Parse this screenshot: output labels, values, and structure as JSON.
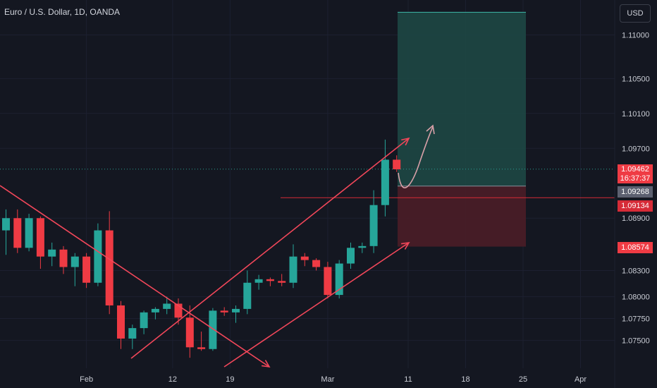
{
  "header": {
    "title": "Euro / U.S. Dollar, 1D, OANDA",
    "currency": "USD"
  },
  "colors": {
    "background": "#141721",
    "up": "#26a69a",
    "down": "#ef3b44",
    "drawing": "#f2475a",
    "target_zone": "#1d4a45",
    "stop_zone": "#4a1d27"
  },
  "price_badges": {
    "current_price": "1.09462",
    "countdown": "16:37:37",
    "entry": "1.09268",
    "stop_line": "1.09134",
    "stop_target": "1.08574"
  },
  "chart_data": {
    "type": "candlestick",
    "title": "Euro / U.S. Dollar, 1D, OANDA",
    "y_axis_ticks": [
      "1.11000",
      "1.10500",
      "1.10100",
      "1.09700",
      "1.08900",
      "1.08300",
      "1.08000",
      "1.07750",
      "1.07500"
    ],
    "x_axis_ticks": [
      "Feb",
      "12",
      "19",
      "Mar",
      "11",
      "18",
      "25",
      "Apr"
    ],
    "ylim": [
      1.0718,
      1.114
    ],
    "ohlc": [
      {
        "o": 1.0876,
        "h": 1.09,
        "l": 1.0848,
        "c": 1.089
      },
      {
        "o": 1.089,
        "h": 1.09,
        "l": 1.085,
        "c": 1.0856
      },
      {
        "o": 1.0856,
        "h": 1.0895,
        "l": 1.0852,
        "c": 1.089
      },
      {
        "o": 1.089,
        "h": 1.0892,
        "l": 1.0832,
        "c": 1.0846
      },
      {
        "o": 1.0846,
        "h": 1.0862,
        "l": 1.0835,
        "c": 1.0854
      },
      {
        "o": 1.0854,
        "h": 1.0858,
        "l": 1.0826,
        "c": 1.0834
      },
      {
        "o": 1.0834,
        "h": 1.085,
        "l": 1.0812,
        "c": 1.0846
      },
      {
        "o": 1.0846,
        "h": 1.085,
        "l": 1.081,
        "c": 1.0816
      },
      {
        "o": 1.0816,
        "h": 1.0884,
        "l": 1.0812,
        "c": 1.0876
      },
      {
        "o": 1.0876,
        "h": 1.0898,
        "l": 1.078,
        "c": 1.079
      },
      {
        "o": 1.079,
        "h": 1.0795,
        "l": 1.074,
        "c": 1.0752
      },
      {
        "o": 1.0752,
        "h": 1.0768,
        "l": 1.074,
        "c": 1.0764
      },
      {
        "o": 1.0764,
        "h": 1.0784,
        "l": 1.0757,
        "c": 1.0782
      },
      {
        "o": 1.0782,
        "h": 1.0788,
        "l": 1.0774,
        "c": 1.0786
      },
      {
        "o": 1.0786,
        "h": 1.08,
        "l": 1.078,
        "c": 1.0792
      },
      {
        "o": 1.0792,
        "h": 1.0798,
        "l": 1.0768,
        "c": 1.0776
      },
      {
        "o": 1.0776,
        "h": 1.079,
        "l": 1.073,
        "c": 1.0742
      },
      {
        "o": 1.0742,
        "h": 1.076,
        "l": 1.0738,
        "c": 1.074
      },
      {
        "o": 1.074,
        "h": 1.0787,
        "l": 1.0738,
        "c": 1.0784
      },
      {
        "o": 1.0784,
        "h": 1.0788,
        "l": 1.0778,
        "c": 1.0782
      },
      {
        "o": 1.0782,
        "h": 1.079,
        "l": 1.077,
        "c": 1.0786
      },
      {
        "o": 1.0786,
        "h": 1.083,
        "l": 1.078,
        "c": 1.0816
      },
      {
        "o": 1.0816,
        "h": 1.0825,
        "l": 1.0808,
        "c": 1.082
      },
      {
        "o": 1.082,
        "h": 1.0822,
        "l": 1.0812,
        "c": 1.0818
      },
      {
        "o": 1.0818,
        "h": 1.0826,
        "l": 1.0812,
        "c": 1.0816
      },
      {
        "o": 1.0816,
        "h": 1.086,
        "l": 1.081,
        "c": 1.0846
      },
      {
        "o": 1.0846,
        "h": 1.085,
        "l": 1.0835,
        "c": 1.0842
      },
      {
        "o": 1.0842,
        "h": 1.0844,
        "l": 1.083,
        "c": 1.0834
      },
      {
        "o": 1.0834,
        "h": 1.084,
        "l": 1.0798,
        "c": 1.0802
      },
      {
        "o": 1.0802,
        "h": 1.0842,
        "l": 1.0798,
        "c": 1.0838
      },
      {
        "o": 1.0838,
        "h": 1.0862,
        "l": 1.0832,
        "c": 1.0856
      },
      {
        "o": 1.0856,
        "h": 1.0862,
        "l": 1.085,
        "c": 1.0858
      },
      {
        "o": 1.0858,
        "h": 1.0922,
        "l": 1.085,
        "c": 1.0905
      },
      {
        "o": 1.0905,
        "h": 1.098,
        "l": 1.0892,
        "c": 1.0957
      },
      {
        "o": 1.0957,
        "h": 1.0962,
        "l": 1.0943,
        "c": 1.0946
      }
    ],
    "annotations": {
      "entry": 1.09268,
      "stop_line": 1.09134,
      "stop_target": 1.08574,
      "target_top": 1.1126,
      "current_price": 1.09462
    }
  }
}
